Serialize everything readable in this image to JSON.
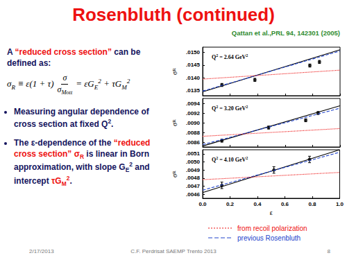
{
  "slide": {
    "title": "Rosenbluth (continued)",
    "reference": "Qattan et al.,PRL 94, 142301 (2005)",
    "intro": [
      {
        "text": "A "
      },
      {
        "text": "“reduced cross section”",
        "color": "#ee1111"
      },
      {
        "text": " can be defined as:"
      }
    ],
    "equation": {
      "lhs": [
        {
          "text": "σ"
        },
        {
          "text": "R",
          "sub": true
        },
        {
          "text": " ≡ ε(1 + τ)"
        }
      ],
      "numerator": [
        {
          "text": "σ"
        }
      ],
      "denominator": [
        {
          "text": "σ"
        },
        {
          "text": "Mott",
          "sub": true
        }
      ],
      "rhs": [
        {
          "text": "= εG"
        },
        {
          "text": "E",
          "sub": true
        },
        {
          "text": "2",
          "sup": true
        },
        {
          "text": " + τG"
        },
        {
          "text": "M",
          "sub": true
        },
        {
          "text": "2",
          "sup": true
        }
      ]
    },
    "bullets": [
      [
        {
          "text": "Measuring angular dependence of cross section at fixed Q"
        },
        {
          "text": "2",
          "sup": true
        },
        {
          "text": "."
        }
      ],
      [
        {
          "text": "The ε-dependence of the "
        },
        {
          "text": "“reduced cross section” σ",
          "color": "#ee1111"
        },
        {
          "text": "R",
          "sub": true,
          "color": "#ee1111"
        },
        {
          "text": " is linear in Born approximation, with slope G"
        },
        {
          "text": "E",
          "sub": true
        },
        {
          "text": "2",
          "sup": true
        },
        {
          "text": " and intercept "
        },
        {
          "text": "τG",
          "color": "#ee1111"
        },
        {
          "text": "M",
          "sub": true,
          "color": "#ee1111"
        },
        {
          "text": "2",
          "sup": true,
          "color": "#ee1111"
        },
        {
          "text": "."
        }
      ]
    ],
    "legend": [
      {
        "text": "from recoil polarization",
        "color": "#ee1111",
        "line_style": "dotted"
      },
      {
        "text": "previous Rosenbluth",
        "color": "#2244cc",
        "line_style": "dashed"
      }
    ],
    "footer": {
      "date": "2/17/2013",
      "event": "C.F. Perdrisat SAEMP Trento 2013",
      "page": "8"
    }
  },
  "chart_data": [
    {
      "type": "scatter",
      "annotation": [
        {
          "text": "Q"
        },
        {
          "text": "2",
          "sup": true
        },
        {
          "text": " = 2.64 GeV"
        },
        {
          "text": "2",
          "sup": true
        }
      ],
      "y_label": {
        "symbol": "σ",
        "sub": "R"
      },
      "xlim": [
        0,
        1
      ],
      "xticks": [
        {
          "value": 0,
          "label": "0.0"
        },
        0.2,
        0.4,
        0.6,
        0.8,
        {
          "value": 1,
          "label": "1.0"
        }
      ],
      "ylim": [
        0.0133,
        0.0152
      ],
      "yticks": [
        {
          "value": 0.0135,
          "label": ".0135"
        },
        {
          "value": 0.014,
          "label": ".0140"
        },
        {
          "value": 0.0145,
          "label": ".0145"
        },
        {
          "value": 0.015,
          "label": ".0150"
        }
      ],
      "tick_labels": "y",
      "grid": false,
      "series": [
        {
          "type": "scatter",
          "color": "#000000",
          "marker": "circle",
          "x": [
            0.14,
            0.38,
            0.78,
            0.85
          ],
          "values": [
            0.01372,
            0.01392,
            0.01448,
            0.01462
          ],
          "errors": [
            6e-05,
            6e-05,
            6e-05,
            6e-05
          ]
        },
        {
          "type": "line",
          "color": "#000000",
          "line_style": "solid",
          "x": [
            0,
            1
          ],
          "values": [
            0.01345,
            0.0151
          ]
        },
        {
          "type": "line",
          "color": "#2244cc",
          "line_style": "dashed",
          "x": [
            0,
            1
          ],
          "values": [
            0.01348,
            0.01505
          ]
        },
        {
          "type": "line",
          "color": "#ee1111",
          "line_style": "dotted",
          "x": [
            0,
            1
          ],
          "values": [
            0.01395,
            0.0143
          ]
        }
      ]
    },
    {
      "type": "scatter",
      "annotation": [
        {
          "text": "Q"
        },
        {
          "text": "2",
          "sup": true
        },
        {
          "text": " = 3.20 GeV"
        },
        {
          "text": "2",
          "sup": true
        }
      ],
      "y_label": {
        "symbol": "σ",
        "sub": "R"
      },
      "xlim": [
        0,
        1
      ],
      "xticks": [
        {
          "value": 0,
          "label": "0.0"
        },
        0.2,
        0.4,
        0.6,
        0.8,
        {
          "value": 1,
          "label": "1.0"
        }
      ],
      "ylim": [
        0.0085,
        0.0095
      ],
      "yticks": [
        {
          "value": 0.0086,
          "label": ".0086"
        },
        {
          "value": 0.0088,
          "label": ".0088"
        },
        {
          "value": 0.009,
          "label": ".0090"
        },
        {
          "value": 0.0092,
          "label": ".0092"
        },
        {
          "value": 0.0094,
          "label": ".0094"
        }
      ],
      "tick_labels": "y",
      "grid": false,
      "series": [
        {
          "type": "scatter",
          "color": "#000000",
          "marker": "circle",
          "x": [
            0.14,
            0.48,
            0.75,
            0.84
          ],
          "values": [
            0.00863,
            0.0089,
            0.00905,
            0.0092
          ],
          "errors": [
            3e-05,
            3e-05,
            3e-05,
            3e-05
          ]
        },
        {
          "type": "line",
          "color": "#000000",
          "line_style": "solid",
          "x": [
            0,
            1
          ],
          "values": [
            0.00852,
            0.00935
          ]
        },
        {
          "type": "line",
          "color": "#2244cc",
          "line_style": "dashed",
          "x": [
            0,
            1
          ],
          "values": [
            0.00855,
            0.0093
          ]
        },
        {
          "type": "line",
          "color": "#ee1111",
          "line_style": "dotted",
          "x": [
            0,
            1
          ],
          "values": [
            0.00872,
            0.00888
          ]
        }
      ]
    },
    {
      "type": "scatter",
      "annotation": [
        {
          "text": "Q"
        },
        {
          "text": "2",
          "sup": true
        },
        {
          "text": " = 4.10 GeV"
        },
        {
          "text": "2",
          "sup": true
        }
      ],
      "y_label": {
        "symbol": "σ",
        "sub": "R"
      },
      "x_label": "ε",
      "xlim": [
        0,
        1
      ],
      "xticks": [
        {
          "value": 0,
          "label": "0.0"
        },
        0.2,
        0.4,
        0.6,
        0.8,
        {
          "value": 1,
          "label": "1.0"
        }
      ],
      "ylim": [
        0.00455,
        0.00515
      ],
      "yticks": [
        {
          "value": 0.0046,
          "label": ".0046"
        },
        {
          "value": 0.0047,
          "label": ".0047"
        },
        {
          "value": 0.0048,
          "label": ".0048"
        },
        {
          "value": 0.0049,
          "label": ".0049"
        },
        {
          "value": 0.005,
          "label": ".0050"
        },
        {
          "value": 0.0051,
          "label": ".0051"
        }
      ],
      "grid": false,
      "series": [
        {
          "type": "scatter",
          "color": "#000000",
          "marker": "circle",
          "x": [
            0.14,
            0.52,
            0.78
          ],
          "values": [
            0.00471,
            0.0049,
            0.00503
          ],
          "errors": [
            4e-05,
            4e-05,
            4e-05
          ]
        },
        {
          "type": "line",
          "color": "#000000",
          "line_style": "solid",
          "x": [
            0,
            1
          ],
          "values": [
            0.00462,
            0.00515
          ]
        },
        {
          "type": "line",
          "color": "#2244cc",
          "line_style": "dashed",
          "x": [
            0,
            1
          ],
          "values": [
            0.00465,
            0.00512
          ]
        },
        {
          "type": "line",
          "color": "#ee1111",
          "line_style": "dotted",
          "x": [
            0,
            1
          ],
          "values": [
            0.00478,
            0.00487
          ]
        }
      ]
    }
  ]
}
